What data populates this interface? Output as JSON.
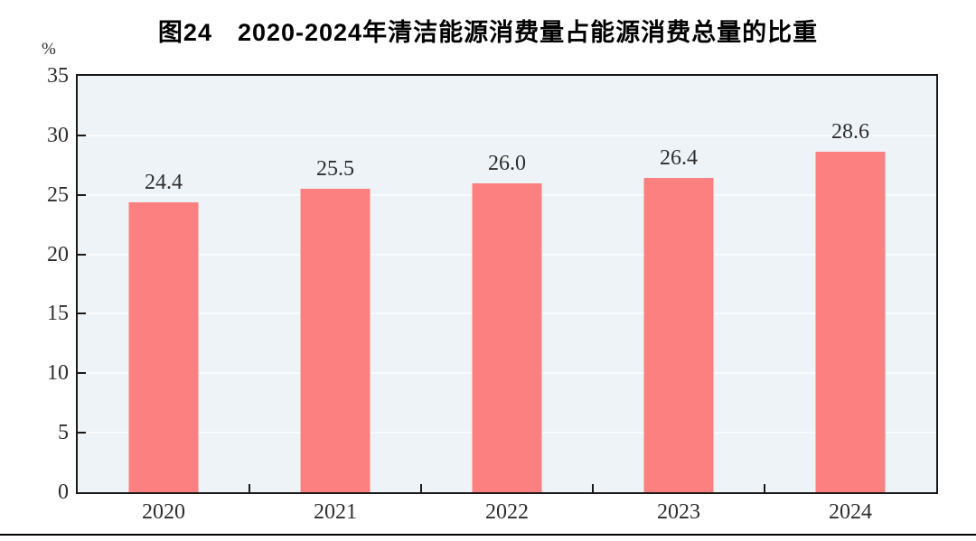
{
  "chart_data": {
    "type": "bar",
    "title": "图24　2020-2024年清洁能源消费量占能源消费总量的比重",
    "unit_label": "%",
    "categories": [
      "2020",
      "2021",
      "2022",
      "2023",
      "2024"
    ],
    "values": [
      24.4,
      25.5,
      26.0,
      26.4,
      28.6
    ],
    "value_labels": [
      "24.4",
      "25.5",
      "26.0",
      "26.4",
      "28.6"
    ],
    "xlabel": "",
    "ylabel": "%",
    "ylim": [
      0,
      35
    ],
    "ytick_step": 5,
    "yticks": [
      0,
      5,
      10,
      15,
      20,
      25,
      30,
      35
    ],
    "grid": true,
    "legend_position": "none",
    "colors": {
      "bar": "#FC8080",
      "plot_background": "#EDF3F7",
      "gridline": "#F9FCFE",
      "axis_border": "#1a1a1a",
      "label_text": "#2e2e2e",
      "title_text": "#000000"
    }
  }
}
